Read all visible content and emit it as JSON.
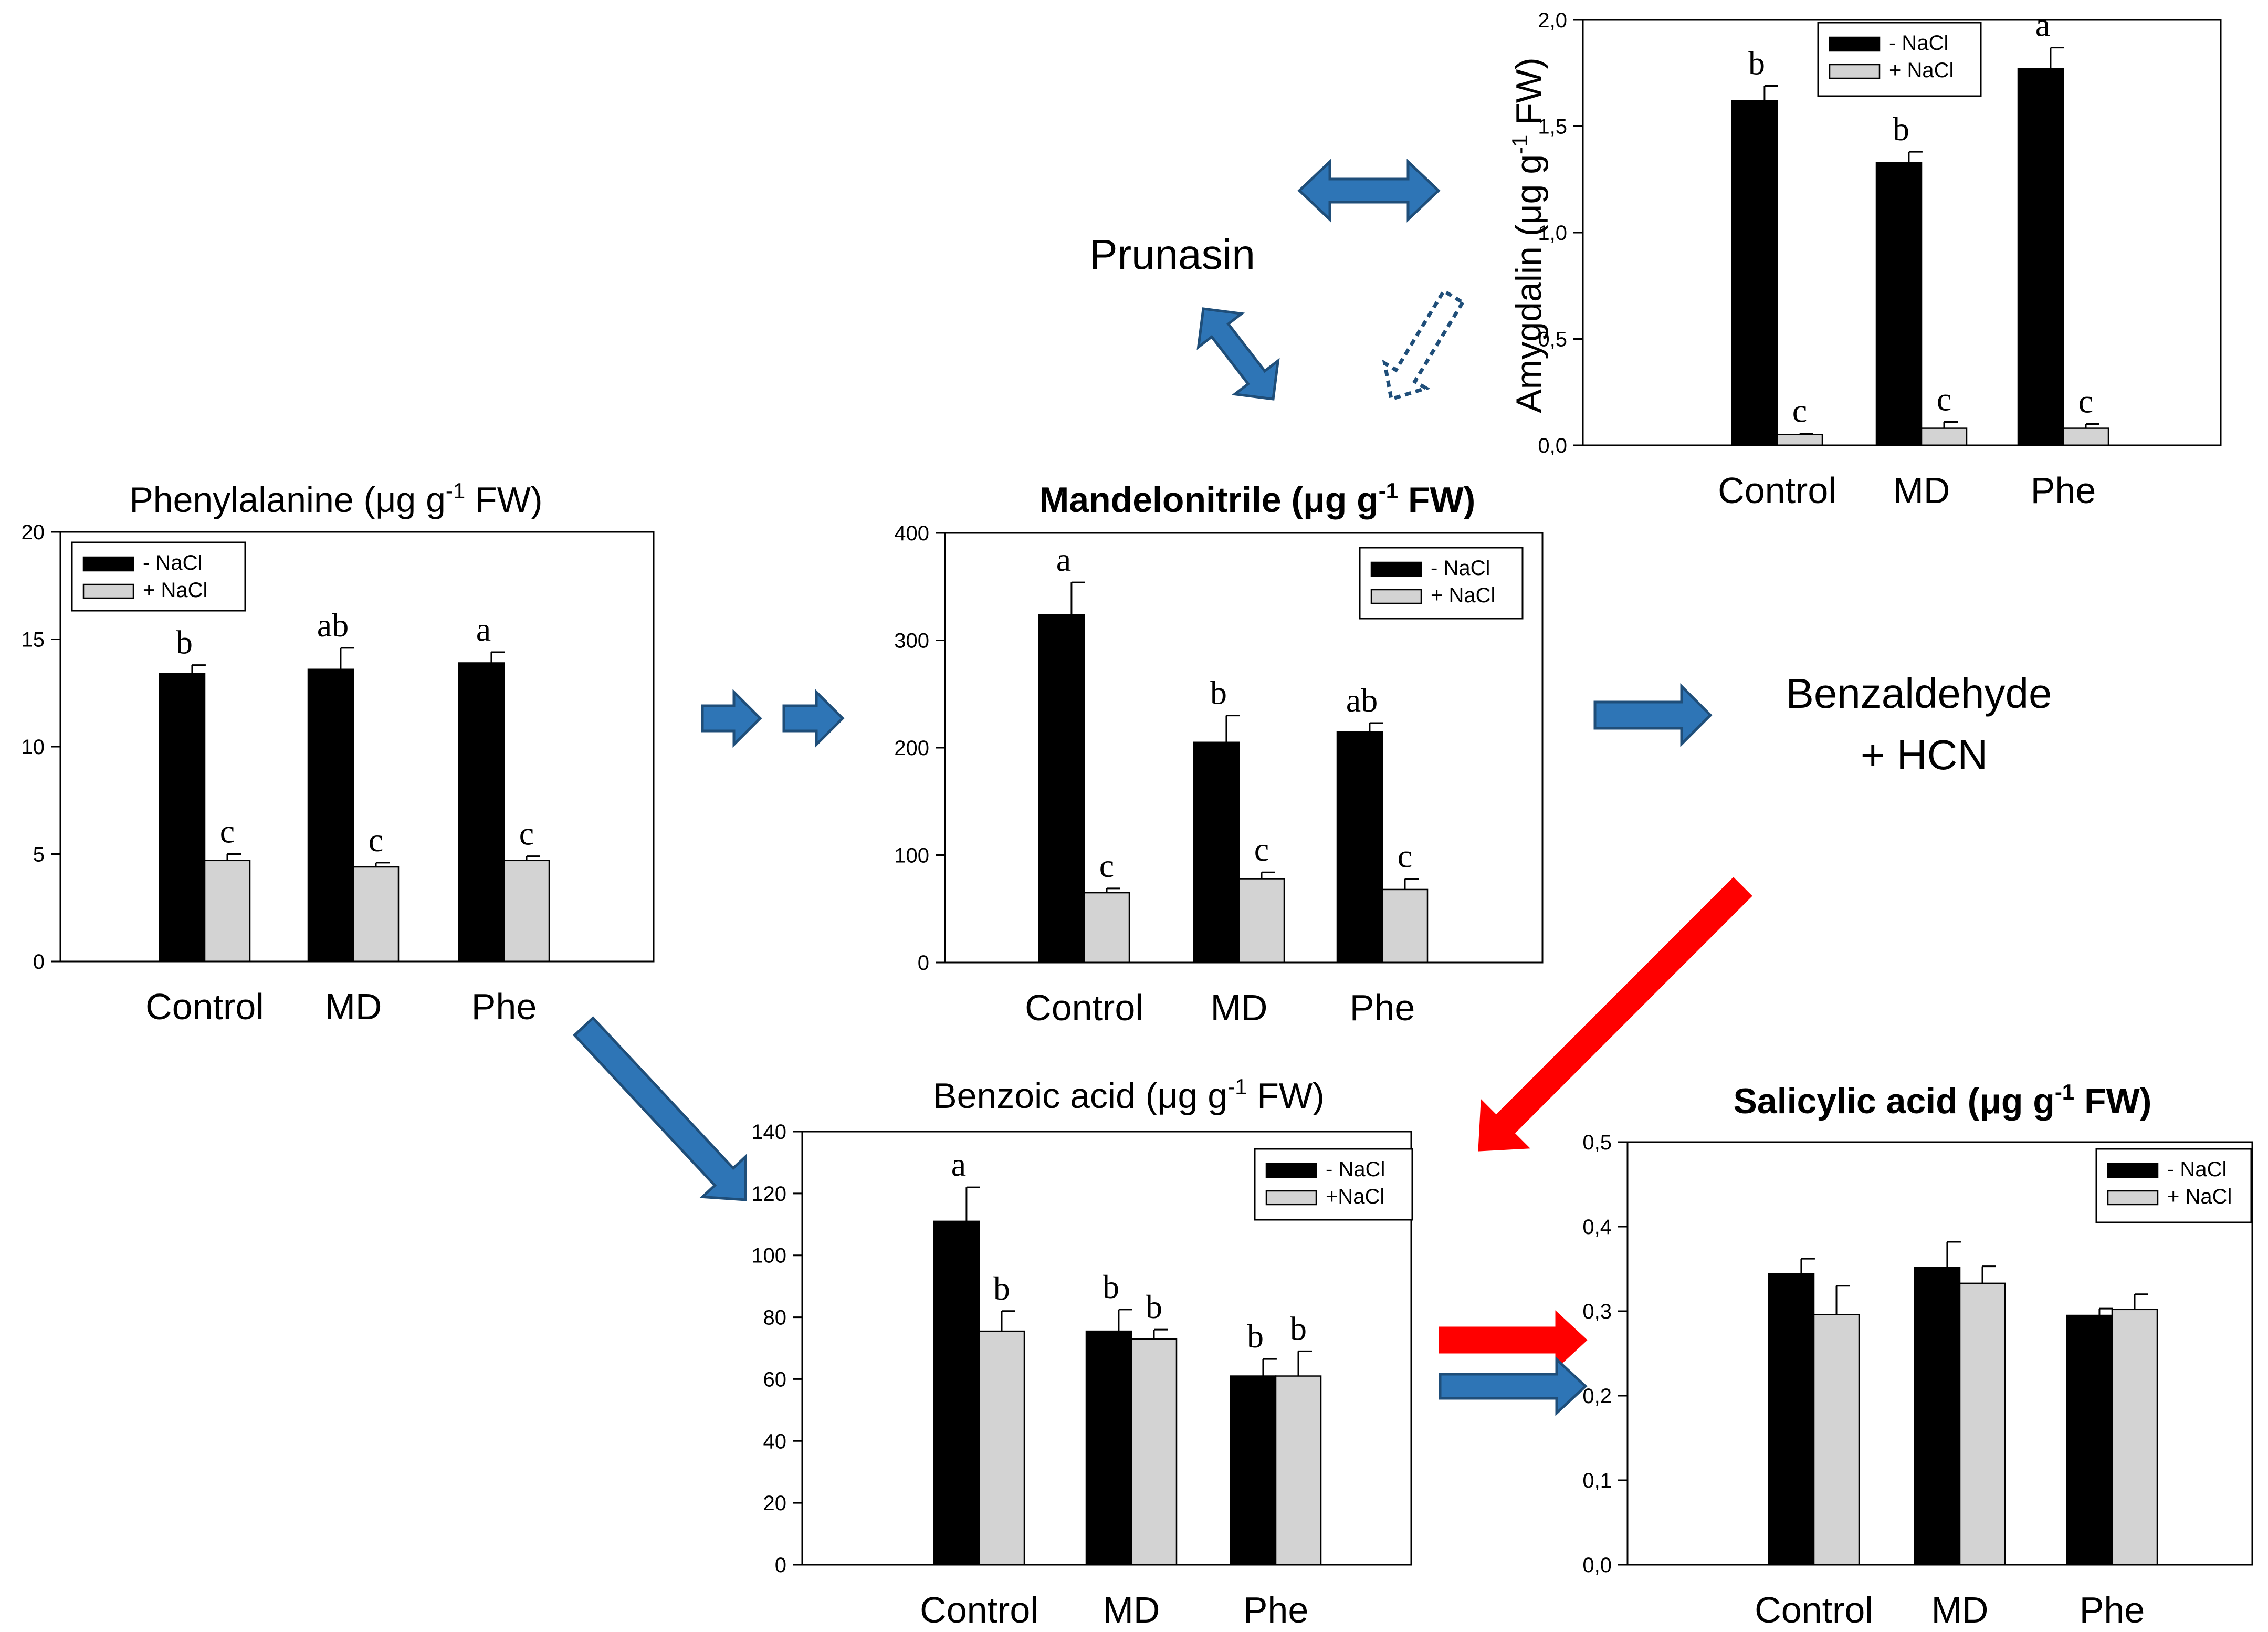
{
  "colors": {
    "control_bar": "#000000",
    "nacl_bar": "#d3d3d3",
    "blue_arrow": "#2e75b6",
    "blue_arrow_edge": "#1f4e79",
    "red_arrow": "#ff0000"
  },
  "nodes": {
    "prunasin": "Prunasin",
    "benzaldehyde": "Benzaldehyde",
    "hcn": "+ HCN"
  },
  "chart_data": [
    {
      "id": "phe",
      "type": "bar",
      "title": "Phenylalanine (μg g",
      "title_sup": "-1",
      "title_tail": " FW)",
      "title_bold": false,
      "ylabel": "",
      "ylim": [
        0,
        20
      ],
      "yticks": [
        "0",
        "5",
        "10",
        "15",
        "20"
      ],
      "categories": [
        "Control",
        "MD",
        "Phe"
      ],
      "series": [
        {
          "name": "- NaCl",
          "values": [
            13.4,
            13.6,
            13.9
          ],
          "errors": [
            0.4,
            1.0,
            0.5
          ],
          "letters": [
            "b",
            "ab",
            "a"
          ]
        },
        {
          "name": "+ NaCl",
          "values": [
            4.7,
            4.4,
            4.7
          ],
          "errors": [
            0.3,
            0.2,
            0.2
          ],
          "letters": [
            "c",
            "c",
            "c"
          ]
        }
      ],
      "legend": "top-left"
    },
    {
      "id": "mandelo",
      "type": "bar",
      "title": "Mandelonitrile (μg g",
      "title_sup": "-1",
      "title_tail": " FW)",
      "title_bold": true,
      "ylabel": "",
      "ylim": [
        0,
        400
      ],
      "yticks": [
        "0",
        "100",
        "200",
        "300",
        "400"
      ],
      "categories": [
        "Control",
        "MD",
        "Phe"
      ],
      "series": [
        {
          "name": "- NaCl",
          "values": [
            324,
            205,
            215
          ],
          "errors": [
            30,
            25,
            8
          ],
          "letters": [
            "a",
            "b",
            "ab"
          ]
        },
        {
          "name": "+ NaCl",
          "values": [
            65,
            78,
            68
          ],
          "errors": [
            4,
            6,
            10
          ],
          "letters": [
            "c",
            "c",
            "c"
          ]
        }
      ],
      "legend": "top-right"
    },
    {
      "id": "amyg",
      "type": "bar",
      "title": "",
      "title_sup": "",
      "title_tail": "",
      "title_bold": false,
      "ylabel": "Amygdalin (μg g",
      "ylabel_sup": "-1",
      "ylabel_tail": " FW)",
      "ylim": [
        0,
        2.0
      ],
      "yticks": [
        "0,0",
        "0,5",
        "1,0",
        "1,5",
        "2,0"
      ],
      "categories": [
        "Control",
        "MD",
        "Phe"
      ],
      "series": [
        {
          "name": "- NaCl",
          "values": [
            1.62,
            1.33,
            1.77
          ],
          "errors": [
            0.07,
            0.05,
            0.1
          ],
          "letters": [
            "b",
            "b",
            "a"
          ]
        },
        {
          "name": "+ NaCl",
          "values": [
            0.05,
            0.08,
            0.08
          ],
          "errors": [
            0.005,
            0.03,
            0.02
          ],
          "letters": [
            "c",
            "c",
            "c"
          ]
        }
      ],
      "legend": "top-right"
    },
    {
      "id": "benzoic",
      "type": "bar",
      "title": "Benzoic acid (μg g",
      "title_sup": "-1",
      "title_tail": " FW)",
      "title_bold": false,
      "ylabel": "",
      "ylim": [
        0,
        140
      ],
      "yticks": [
        "0",
        "20",
        "40",
        "60",
        "80",
        "100",
        "120",
        "140"
      ],
      "categories": [
        "Control",
        "MD",
        "Phe"
      ],
      "series": [
        {
          "name": "- NaCl",
          "values": [
            111,
            75.5,
            61
          ],
          "errors": [
            11,
            7,
            5.5
          ],
          "letters": [
            "a",
            "b",
            "b"
          ]
        },
        {
          "name": "+NaCl",
          "values": [
            75.5,
            73,
            61
          ],
          "errors": [
            6.5,
            3,
            8
          ],
          "letters": [
            "b",
            "b",
            "b"
          ]
        }
      ],
      "legend": "top-right"
    },
    {
      "id": "salicylic",
      "type": "bar",
      "title": "Salicylic acid (μg g",
      "title_sup": "-1",
      "title_tail": " FW)",
      "title_bold": true,
      "ylabel": "",
      "ylim": [
        0,
        0.5
      ],
      "yticks": [
        "0,0",
        "0,1",
        "0,2",
        "0,3",
        "0,4",
        "0,5"
      ],
      "categories": [
        "Control",
        "MD",
        "Phe"
      ],
      "series": [
        {
          "name": "- NaCl",
          "values": [
            0.344,
            0.352,
            0.295
          ],
          "errors": [
            0.018,
            0.03,
            0.008
          ],
          "letters": [
            "",
            "",
            ""
          ]
        },
        {
          "name": "+ NaCl",
          "values": [
            0.296,
            0.333,
            0.302
          ],
          "errors": [
            0.034,
            0.02,
            0.018
          ],
          "letters": [
            "",
            "",
            ""
          ]
        }
      ],
      "legend": "top-right"
    }
  ]
}
